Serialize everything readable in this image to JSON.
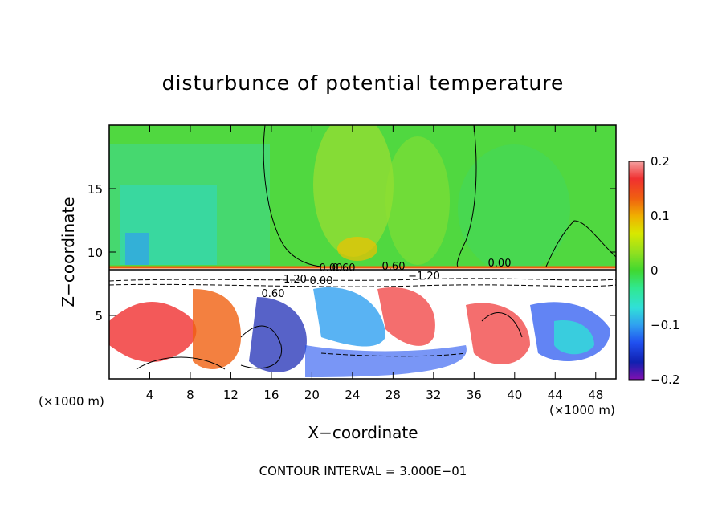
{
  "chart_data": {
    "type": "heatmap",
    "title": "disturbunce of potential temperature",
    "xlabel": "X−coordinate",
    "ylabel": "Z−coordinate",
    "x_unit_left": "(×1000 m)",
    "x_unit_right": "(×1000 m)",
    "footer": "CONTOUR INTERVAL = 3.000E−01",
    "xlim": [
      0,
      50
    ],
    "ylim": [
      0,
      20
    ],
    "x_ticks": [
      4,
      8,
      12,
      16,
      20,
      24,
      28,
      32,
      36,
      40,
      44,
      48
    ],
    "y_ticks": [
      5,
      10,
      15
    ],
    "colorbar": {
      "range": [
        -0.2,
        0.2
      ],
      "ticks": [
        "0.2",
        "0.1",
        "0",
        "−0.1",
        "−0.2"
      ],
      "colors": [
        "#f5a0a0",
        "#f03030",
        "#f06010",
        "#f0b000",
        "#d8e800",
        "#90e020",
        "#40d830",
        "#30e890",
        "#30e0d8",
        "#30a0f0",
        "#2050f0",
        "#1020b0",
        "#8010b0"
      ]
    },
    "contour_labels": [
      "0.00",
      "0.60",
      "0.60",
      "0.00",
      "−1.20",
      "0.00",
      "−1.20",
      "0.60"
    ],
    "regions": [
      {
        "z_range": [
          9,
          20
        ],
        "description_value": "small positive (green, ~0.01 to 0.05)"
      },
      {
        "z_range": [
          0,
          8
        ],
        "description_value": "large magnitude (beyond colorbar range)"
      }
    ]
  }
}
